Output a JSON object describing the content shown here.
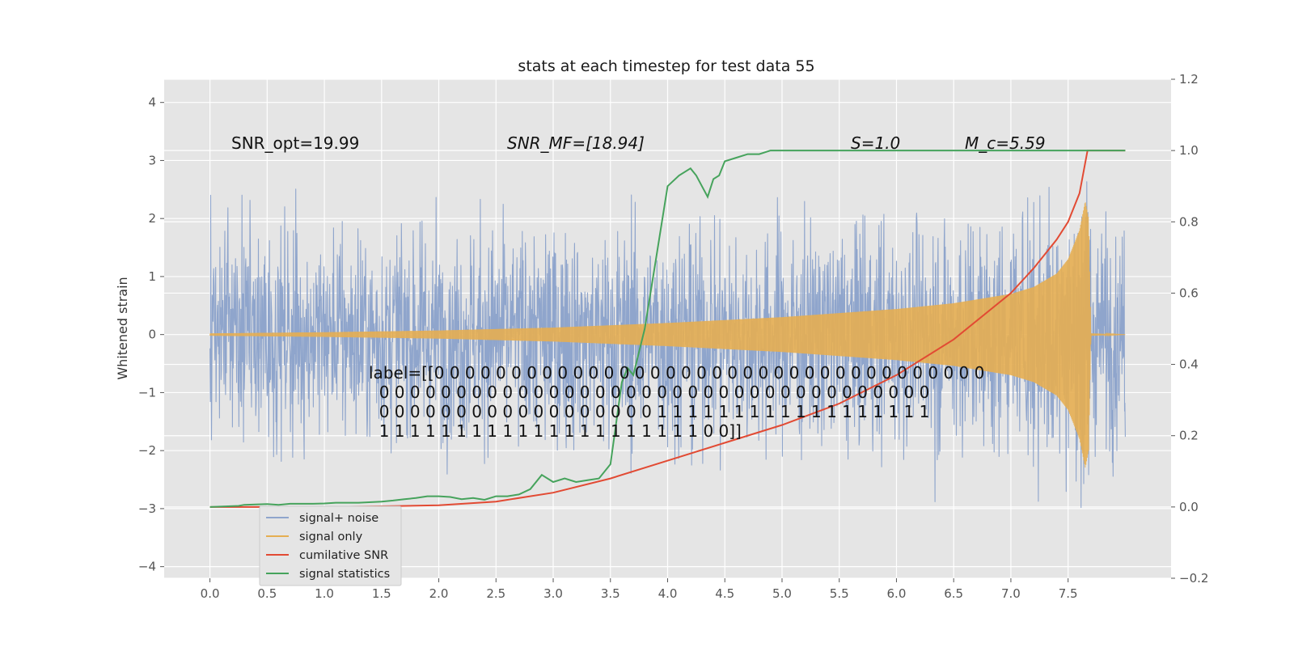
{
  "chart_data": {
    "type": "line",
    "title": "stats at each timestep for test data 55",
    "xlabel": "",
    "ylabel": "Whitened strain",
    "ylabel_right": "",
    "xlim": [
      -0.4,
      8.4
    ],
    "ylim": [
      -4.2,
      4.4
    ],
    "ylim_right": [
      -0.2,
      1.2
    ],
    "xticks": [
      0.0,
      0.5,
      1.0,
      1.5,
      2.0,
      2.5,
      3.0,
      3.5,
      4.0,
      4.5,
      5.0,
      5.5,
      6.0,
      6.5,
      7.0,
      7.5
    ],
    "xtick_labels": [
      "0.0",
      "0.5",
      "1.0",
      "1.5",
      "2.0",
      "2.5",
      "3.0",
      "3.5",
      "4.0",
      "4.5",
      "5.0",
      "5.5",
      "6.0",
      "6.5",
      "7.0",
      "7.5"
    ],
    "yticks": [
      4,
      3,
      2,
      1,
      0,
      -1,
      -2,
      -3,
      -4
    ],
    "ytick_labels": [
      "4",
      "3",
      "2",
      "1",
      "0",
      "−1",
      "−2",
      "−3",
      "−4"
    ],
    "yticks_right": [
      1.2,
      1.0,
      0.8,
      0.6,
      0.4,
      0.2,
      0.0,
      -0.2
    ],
    "ytick_labels_right": [
      "1.2",
      "1.0",
      "0.8",
      "0.6",
      "0.4",
      "0.2",
      "0.0",
      "−0.2"
    ],
    "grid": true,
    "legend_position": "lower-left",
    "annotations": [
      {
        "text": "SNR_opt=19.99",
        "x": 0.2,
        "y": 3.2
      },
      {
        "text": "SNR_MF=[18.94]",
        "x": 2.6,
        "y": 3.2
      },
      {
        "text": "S=1.0",
        "x": 5.6,
        "y": 3.2
      },
      {
        "text": "M_c=5.59",
        "x": 6.6,
        "y": 3.2
      }
    ],
    "label_lines": [
      "label=[[0 0 0 0 0 0 0 0 0 0 0 0 0 0 0 0 0 0 0 0 0 0 0 0 0 0 0 0 0 0 0 0 0 0 0 0",
      "  0 0 0 0 0 0 0 0 0 0 0 0 0 0 0 0 0 0 0 0 0 0 0 0 0 0 0 0 0 0 0 0 0 0 0 0",
      "  0 0 0 0 0 0 0 0 0 0 0 0 0 0 0 0 0 0 1 1 1 1 1 1 1 1 1 1 1 1 1 1 1 1 1 1",
      "  1 1 1 1 1 1 1 1 1 1 1 1 1 1 1 1 1 1 1 1 1 0 0]]"
    ],
    "series": [
      {
        "name": "signal+ noise",
        "axis": "left",
        "color": "#8fa5cc",
        "noise_sigma": 0.9,
        "x_range": [
          0.0,
          8.0
        ]
      },
      {
        "name": "signal only",
        "axis": "left",
        "color": "#e5ae52",
        "x": [
          0.0,
          1.0,
          2.0,
          3.0,
          4.0,
          5.0,
          6.0,
          6.5,
          7.0,
          7.2,
          7.4,
          7.5,
          7.6,
          7.65,
          7.68,
          7.7,
          8.0
        ],
        "envelope": [
          0.02,
          0.04,
          0.07,
          0.12,
          0.2,
          0.3,
          0.44,
          0.54,
          0.7,
          0.82,
          1.05,
          1.3,
          1.8,
          2.3,
          2.0,
          0.02,
          0.0
        ]
      },
      {
        "name": "cumilative SNR",
        "axis": "right",
        "color": "#e24a33",
        "x": [
          0.0,
          0.5,
          1.0,
          1.5,
          2.0,
          2.5,
          3.0,
          3.5,
          4.0,
          4.5,
          5.0,
          5.5,
          6.0,
          6.5,
          7.0,
          7.2,
          7.4,
          7.5,
          7.6,
          7.67,
          7.7,
          8.0
        ],
        "values": [
          0.0,
          0.0,
          0.0,
          0.002,
          0.005,
          0.015,
          0.04,
          0.08,
          0.13,
          0.18,
          0.23,
          0.29,
          0.37,
          0.47,
          0.6,
          0.67,
          0.75,
          0.8,
          0.88,
          1.0,
          1.0,
          1.0
        ]
      },
      {
        "name": "signal statistics",
        "axis": "right",
        "color": "#46a35c",
        "x": [
          0.0,
          0.25,
          0.3,
          0.5,
          0.6,
          0.7,
          0.9,
          1.0,
          1.1,
          1.3,
          1.5,
          1.6,
          1.7,
          1.8,
          1.9,
          2.0,
          2.1,
          2.2,
          2.3,
          2.4,
          2.5,
          2.6,
          2.7,
          2.8,
          2.9,
          3.0,
          3.1,
          3.2,
          3.3,
          3.4,
          3.5,
          3.6,
          3.65,
          3.7,
          3.8,
          3.9,
          4.0,
          4.1,
          4.2,
          4.25,
          4.3,
          4.35,
          4.4,
          4.45,
          4.5,
          4.6,
          4.7,
          4.8,
          4.9,
          5.0,
          5.2,
          5.5,
          6.0,
          7.0,
          8.0
        ],
        "values": [
          0.0,
          0.003,
          0.006,
          0.008,
          0.006,
          0.009,
          0.009,
          0.01,
          0.012,
          0.012,
          0.015,
          0.018,
          0.022,
          0.025,
          0.03,
          0.03,
          0.028,
          0.022,
          0.025,
          0.02,
          0.03,
          0.03,
          0.035,
          0.05,
          0.09,
          0.07,
          0.08,
          0.07,
          0.075,
          0.08,
          0.12,
          0.35,
          0.39,
          0.37,
          0.5,
          0.7,
          0.9,
          0.93,
          0.95,
          0.93,
          0.9,
          0.87,
          0.92,
          0.93,
          0.97,
          0.98,
          0.99,
          0.99,
          1.0,
          1.0,
          1.0,
          1.0,
          1.0,
          1.0,
          1.0
        ]
      }
    ]
  }
}
